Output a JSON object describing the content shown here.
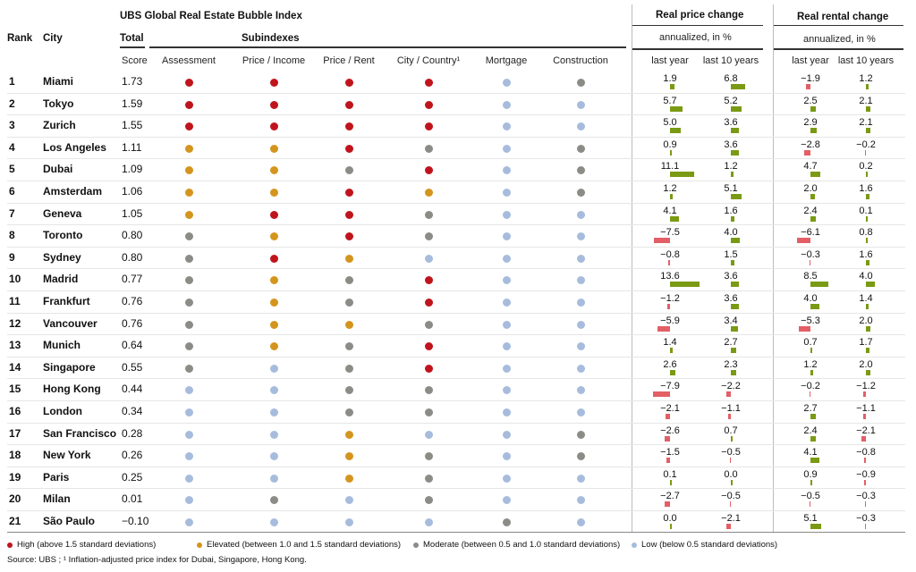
{
  "header": {
    "rank": "Rank",
    "city": "City",
    "title": "UBS Global Real Estate Bubble Index",
    "total": "Total",
    "subindexes": "Subindexes",
    "real_price_change": "Real price change",
    "real_rental_change": "Real rental change",
    "annualized_price": "annualized, in %",
    "annualized_rental": "annualized, in %",
    "score": "Score",
    "sub_cols": [
      "Assessment",
      "Price / Income",
      "Price / Rent",
      "City / Country¹",
      "Mortgage",
      "Construction"
    ],
    "price_cols": [
      "last year",
      "last 10 years"
    ],
    "rent_cols": [
      "last year",
      "last 10 years"
    ]
  },
  "colors": {
    "high": "#c0141c",
    "elevated": "#d4951e",
    "moderate": "#8c8c87",
    "low": "#a7bcdd",
    "pos_bar": "#7a9a14",
    "neg_bar": "#e35f66"
  },
  "chart_data": {
    "type": "table",
    "title": "UBS Global Real Estate Bubble Index",
    "columns": [
      "Rank",
      "City",
      "Score",
      "Assessment",
      "Price/Income",
      "Price/Rent",
      "City/Country",
      "Mortgage",
      "Construction",
      "Real price change last year",
      "Real price change last 10 years",
      "Real rental change last year",
      "Real rental change last 10 years"
    ],
    "rows": [
      {
        "rank": "1",
        "city": "Miami",
        "score": "1.73",
        "sub": [
          "H",
          "H",
          "H",
          "H",
          "L",
          "M"
        ],
        "price_ly": "1.9",
        "price_10": "6.8",
        "rent_ly": "−1.9",
        "rent_10": "1.2"
      },
      {
        "rank": "2",
        "city": "Tokyo",
        "score": "1.59",
        "sub": [
          "H",
          "H",
          "H",
          "H",
          "L",
          "L"
        ],
        "price_ly": "5.7",
        "price_10": "5.2",
        "rent_ly": "2.5",
        "rent_10": "2.1"
      },
      {
        "rank": "3",
        "city": "Zurich",
        "score": "1.55",
        "sub": [
          "H",
          "H",
          "H",
          "H",
          "L",
          "L"
        ],
        "price_ly": "5.0",
        "price_10": "3.6",
        "rent_ly": "2.9",
        "rent_10": "2.1"
      },
      {
        "rank": "4",
        "city": "Los Angeles",
        "score": "1.11",
        "sub": [
          "E",
          "E",
          "H",
          "M",
          "L",
          "M"
        ],
        "price_ly": "0.9",
        "price_10": "3.6",
        "rent_ly": "−2.8",
        "rent_10": "−0.2"
      },
      {
        "rank": "5",
        "city": "Dubai",
        "score": "1.09",
        "sub": [
          "E",
          "E",
          "M",
          "H",
          "L",
          "M"
        ],
        "price_ly": "11.1",
        "price_10": "1.2",
        "rent_ly": "4.7",
        "rent_10": "0.2"
      },
      {
        "rank": "6",
        "city": "Amsterdam",
        "score": "1.06",
        "sub": [
          "E",
          "E",
          "H",
          "E",
          "L",
          "M"
        ],
        "price_ly": "1.2",
        "price_10": "5.1",
        "rent_ly": "2.0",
        "rent_10": "1.6"
      },
      {
        "rank": "7",
        "city": "Geneva",
        "score": "1.05",
        "sub": [
          "E",
          "H",
          "H",
          "M",
          "L",
          "L"
        ],
        "price_ly": "4.1",
        "price_10": "1.6",
        "rent_ly": "2.4",
        "rent_10": "0.1"
      },
      {
        "rank": "8",
        "city": "Toronto",
        "score": "0.80",
        "sub": [
          "M",
          "E",
          "H",
          "M",
          "L",
          "L"
        ],
        "price_ly": "−7.5",
        "price_10": "4.0",
        "rent_ly": "−6.1",
        "rent_10": "0.8"
      },
      {
        "rank": "9",
        "city": "Sydney",
        "score": "0.80",
        "sub": [
          "M",
          "H",
          "E",
          "L",
          "L",
          "L"
        ],
        "price_ly": "−0.8",
        "price_10": "1.5",
        "rent_ly": "−0.3",
        "rent_10": "1.6"
      },
      {
        "rank": "10",
        "city": "Madrid",
        "score": "0.77",
        "sub": [
          "M",
          "E",
          "M",
          "H",
          "L",
          "L"
        ],
        "price_ly": "13.6",
        "price_10": "3.6",
        "rent_ly": "8.5",
        "rent_10": "4.0"
      },
      {
        "rank": "11",
        "city": "Frankfurt",
        "score": "0.76",
        "sub": [
          "M",
          "E",
          "M",
          "H",
          "L",
          "L"
        ],
        "price_ly": "−1.2",
        "price_10": "3.6",
        "rent_ly": "4.0",
        "rent_10": "1.4"
      },
      {
        "rank": "12",
        "city": "Vancouver",
        "score": "0.76",
        "sub": [
          "M",
          "E",
          "E",
          "M",
          "L",
          "L"
        ],
        "price_ly": "−5.9",
        "price_10": "3.4",
        "rent_ly": "−5.3",
        "rent_10": "2.0"
      },
      {
        "rank": "13",
        "city": "Munich",
        "score": "0.64",
        "sub": [
          "M",
          "E",
          "M",
          "H",
          "L",
          "L"
        ],
        "price_ly": "1.4",
        "price_10": "2.7",
        "rent_ly": "0.7",
        "rent_10": "1.7"
      },
      {
        "rank": "14",
        "city": "Singapore",
        "score": "0.55",
        "sub": [
          "M",
          "L",
          "M",
          "H",
          "L",
          "L"
        ],
        "price_ly": "2.6",
        "price_10": "2.3",
        "rent_ly": "1.2",
        "rent_10": "2.0"
      },
      {
        "rank": "15",
        "city": "Hong Kong",
        "score": "0.44",
        "sub": [
          "L",
          "L",
          "M",
          "M",
          "L",
          "L"
        ],
        "price_ly": "−7.9",
        "price_10": "−2.2",
        "rent_ly": "−0.2",
        "rent_10": "−1.2"
      },
      {
        "rank": "16",
        "city": "London",
        "score": "0.34",
        "sub": [
          "L",
          "L",
          "M",
          "M",
          "L",
          "L"
        ],
        "price_ly": "−2.1",
        "price_10": "−1.1",
        "rent_ly": "2.7",
        "rent_10": "−1.1"
      },
      {
        "rank": "17",
        "city": "San Francisco",
        "score": "0.28",
        "sub": [
          "L",
          "L",
          "E",
          "L",
          "L",
          "M"
        ],
        "price_ly": "−2.6",
        "price_10": "0.7",
        "rent_ly": "2.4",
        "rent_10": "−2.1"
      },
      {
        "rank": "18",
        "city": "New York",
        "score": "0.26",
        "sub": [
          "L",
          "L",
          "E",
          "M",
          "L",
          "M"
        ],
        "price_ly": "−1.5",
        "price_10": "−0.5",
        "rent_ly": "4.1",
        "rent_10": "−0.8"
      },
      {
        "rank": "19",
        "city": "Paris",
        "score": "0.25",
        "sub": [
          "L",
          "L",
          "E",
          "M",
          "L",
          "L"
        ],
        "price_ly": "0.1",
        "price_10": "0.0",
        "rent_ly": "0.9",
        "rent_10": "−0.9"
      },
      {
        "rank": "20",
        "city": "Milan",
        "score": "0.01",
        "sub": [
          "L",
          "M",
          "L",
          "M",
          "L",
          "L"
        ],
        "price_ly": "−2.7",
        "price_10": "−0.5",
        "rent_ly": "−0.5",
        "rent_10": "−0.3"
      },
      {
        "rank": "21",
        "city": "São Paulo",
        "score": "−0.10",
        "sub": [
          "L",
          "L",
          "L",
          "L",
          "M",
          "L"
        ],
        "price_ly": "0.0",
        "price_10": "−2.1",
        "rent_ly": "5.1",
        "rent_10": "−0.3"
      }
    ]
  },
  "legend": {
    "high": "High (above 1.5 standard deviations)",
    "elevated": "Elevated (between 1.0 and 1.5 standard deviations)",
    "moderate": "Moderate (between 0.5 and 1.0 standard deviations)",
    "low": "Low (below 0.5 standard deviations)"
  },
  "source": "Source: UBS ; ¹ Inflation-adjusted price index for Dubai, Singapore, Hong Kong."
}
